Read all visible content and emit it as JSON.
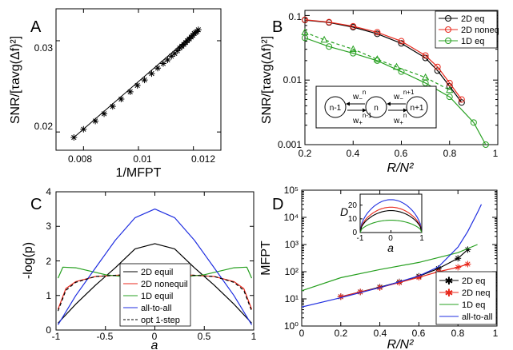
{
  "chart_data": [
    {
      "panel": "A",
      "type": "scatter",
      "xlabel": "1/MFPT",
      "ylabel": "SNR/[τavg(Δf)²]",
      "xlim": [
        0.007,
        0.013
      ],
      "ylim": [
        0.018,
        0.0335
      ],
      "xticks": [
        "0.008",
        "0.01",
        "0.012"
      ],
      "yticks": [
        "0.02",
        "0.03"
      ],
      "series": [
        {
          "marker": "asterisk",
          "fit_line": true,
          "x": [
            0.00765,
            0.008,
            0.00843,
            0.00875,
            0.00906,
            0.00937,
            0.0097,
            0.00996,
            0.01022,
            0.01048,
            0.0107,
            0.0109,
            0.01106,
            0.0112,
            0.01132,
            0.01142,
            0.0115,
            0.01158,
            0.01165,
            0.01172,
            0.01178,
            0.01185,
            0.01192,
            0.01198,
            0.01203,
            0.01208,
            0.01213,
            0.01218
          ],
          "y": [
            0.0194,
            0.0203,
            0.0212,
            0.022,
            0.0228,
            0.0236,
            0.0244,
            0.0251,
            0.0257,
            0.0264,
            0.027,
            0.0275,
            0.0279,
            0.0283,
            0.0286,
            0.0289,
            0.0292,
            0.0294,
            0.0296,
            0.0298,
            0.03,
            0.0302,
            0.0304,
            0.0306,
            0.0308,
            0.0309,
            0.031,
            0.0312
          ]
        }
      ]
    },
    {
      "panel": "B",
      "type": "line",
      "xlabel": "R/N²",
      "ylabel": "SNR/[τavg(Δf)²]",
      "xlim": [
        0.2,
        1.0
      ],
      "ylim": [
        0.001,
        0.12
      ],
      "yscale": "log",
      "xticks": [
        "0.2",
        "0.4",
        "0.6",
        "0.8",
        "1"
      ],
      "yticks": [
        "0.001",
        "0.01",
        "0.1"
      ],
      "legend": "top-right",
      "series": [
        {
          "name": "2D eq",
          "color": "#000000",
          "marker": "circle",
          "x": [
            0.2,
            0.3,
            0.4,
            0.5,
            0.6,
            0.7,
            0.75,
            0.8,
            0.85
          ],
          "y": [
            0.085,
            0.078,
            0.066,
            0.052,
            0.037,
            0.022,
            0.014,
            0.008,
            0.0045
          ]
        },
        {
          "name": "2D noneq",
          "color": "#e8281c",
          "marker": "circle",
          "x": [
            0.2,
            0.3,
            0.4,
            0.5,
            0.6,
            0.7,
            0.75,
            0.8,
            0.85
          ],
          "y": [
            0.086,
            0.079,
            0.068,
            0.055,
            0.04,
            0.024,
            0.016,
            0.009,
            0.005
          ]
        },
        {
          "name": "1D eq",
          "color": "#27a020",
          "marker": "circle",
          "x": [
            0.2,
            0.3,
            0.4,
            0.5,
            0.6,
            0.7,
            0.8,
            0.9,
            0.95
          ],
          "y": [
            0.045,
            0.033,
            0.026,
            0.02,
            0.0135,
            0.009,
            0.0055,
            0.0022,
            0.001
          ]
        },
        {
          "color": "#27a020",
          "marker": "triangle",
          "dashed": true,
          "x": [
            0.2,
            0.28,
            0.4,
            0.5,
            0.58,
            0.7,
            0.8
          ],
          "y": [
            0.055,
            0.042,
            0.03,
            0.021,
            0.016,
            0.011,
            0.007
          ]
        }
      ],
      "inset": {
        "nodes": [
          "n-1",
          "n",
          "n+1"
        ],
        "top_rates": [
          "w",
          "n",
          "w",
          "n+1"
        ],
        "bottom_rates": [
          "w",
          "n-1",
          "w",
          "n"
        ]
      }
    },
    {
      "panel": "C",
      "type": "line",
      "xlabel": "a",
      "ylabel": "-log(p)",
      "xlim": [
        -1,
        1
      ],
      "ylim": [
        0,
        4
      ],
      "xticks": [
        "-1",
        "-0.5",
        "0",
        "0.5",
        "1"
      ],
      "yticks": [
        "0",
        "1",
        "2",
        "3",
        "4"
      ],
      "legend": "bottom-center",
      "series": [
        {
          "name": "2D equil",
          "color": "#000000",
          "x": [
            -0.98,
            -0.8,
            -0.6,
            -0.4,
            -0.2,
            0,
            0.2,
            0.4,
            0.6,
            0.8,
            0.98
          ],
          "y": [
            0.2,
            0.75,
            1.3,
            1.8,
            2.35,
            2.5,
            2.35,
            1.8,
            1.3,
            0.75,
            0.2
          ]
        },
        {
          "name": "2D nonequil",
          "color": "#e8281c",
          "x": [
            -0.98,
            -0.9,
            -0.8,
            -0.6,
            -0.3,
            0,
            0.3,
            0.6,
            0.8,
            0.9,
            0.98
          ],
          "y": [
            0.6,
            1.2,
            1.4,
            1.55,
            1.6,
            1.6,
            1.6,
            1.55,
            1.4,
            1.2,
            0.6
          ]
        },
        {
          "name": "1D equil",
          "color": "#27a020",
          "x": [
            -0.98,
            -0.93,
            -0.8,
            -0.5,
            0,
            0.5,
            0.8,
            0.93,
            0.98
          ],
          "y": [
            1.5,
            1.82,
            1.8,
            1.6,
            1.45,
            1.6,
            1.8,
            1.82,
            1.5
          ]
        },
        {
          "name": "all-to-all",
          "color": "#1f2ee0",
          "x": [
            -0.98,
            -0.8,
            -0.6,
            -0.4,
            -0.2,
            0,
            0.2,
            0.4,
            0.6,
            0.8,
            0.98
          ],
          "y": [
            0.15,
            1.0,
            1.8,
            2.6,
            3.25,
            3.5,
            3.25,
            2.6,
            1.8,
            1.0,
            0.15
          ]
        },
        {
          "name": "opt 1-step",
          "color": "#000000",
          "dashed": true,
          "x": [
            -0.98,
            -0.9,
            -0.8,
            -0.6,
            -0.3,
            -0.05,
            0,
            0.05,
            0.3,
            0.6,
            0.8,
            0.9,
            0.98
          ],
          "y": [
            0.55,
            1.15,
            1.38,
            1.55,
            1.6,
            1.55,
            1.4,
            1.55,
            1.6,
            1.55,
            1.38,
            1.15,
            0.55
          ]
        }
      ]
    },
    {
      "panel": "D",
      "type": "line",
      "xlabel": "R/N²",
      "ylabel": "MFPT",
      "xlim": [
        0,
        1
      ],
      "ylim": [
        1,
        100000
      ],
      "yscale": "log",
      "xticks": [
        "0",
        "0.2",
        "0.4",
        "0.6",
        "0.8",
        "1"
      ],
      "yticks": [
        "10⁰",
        "10¹",
        "10²",
        "10³",
        "10⁴",
        "10⁵"
      ],
      "legend": "bottom-right",
      "series": [
        {
          "name": "2D eq",
          "color": "#000000",
          "marker": "asterisk",
          "x": [
            0.2,
            0.3,
            0.4,
            0.5,
            0.6,
            0.7,
            0.8,
            0.85
          ],
          "y": [
            12,
            18,
            27,
            42,
            68,
            130,
            310,
            650
          ]
        },
        {
          "name": "2D neq",
          "color": "#e8281c",
          "marker": "asterisk",
          "x": [
            0.2,
            0.3,
            0.4,
            0.5,
            0.6,
            0.7,
            0.8,
            0.85
          ],
          "y": [
            12,
            18,
            26,
            40,
            62,
            100,
            145,
            190
          ]
        },
        {
          "name": "1D eq",
          "color": "#27a020",
          "x": [
            0,
            0.2,
            0.4,
            0.6,
            0.8,
            0.9
          ],
          "y": [
            20,
            60,
            120,
            220,
            500,
            1000
          ]
        },
        {
          "name": "all-to-all",
          "color": "#1f2ee0",
          "x": [
            0,
            0.2,
            0.4,
            0.6,
            0.7,
            0.8,
            0.85,
            0.9,
            0.92
          ],
          "y": [
            5,
            11,
            26,
            70,
            150,
            800,
            3000,
            15000,
            30000
          ]
        }
      ],
      "inset": {
        "xlabel": "a",
        "ylabel": "D",
        "xlim": [
          -1,
          1
        ],
        "ylim": [
          0,
          28
        ],
        "xticks": [
          "-1",
          "0",
          "1"
        ],
        "yticks": [
          "0",
          "10",
          "20"
        ],
        "series": [
          {
            "color": "#1f2ee0",
            "x": [
              -1,
              -0.5,
              0,
              0.5,
              1
            ],
            "y": [
              0,
              18,
              24,
              18,
              0
            ]
          },
          {
            "color": "#e8281c",
            "x": [
              -1,
              -0.5,
              0,
              0.5,
              1
            ],
            "y": [
              0,
              14,
              18.5,
              14,
              0
            ]
          },
          {
            "color": "#000000",
            "x": [
              -1,
              -0.5,
              0,
              0.5,
              1
            ],
            "y": [
              0,
              12,
              16,
              12,
              0
            ]
          },
          {
            "color": "#27a020",
            "x": [
              -1,
              -0.5,
              0,
              0.5,
              1
            ],
            "y": [
              0,
              6,
              9,
              6,
              0
            ]
          }
        ]
      }
    }
  ]
}
